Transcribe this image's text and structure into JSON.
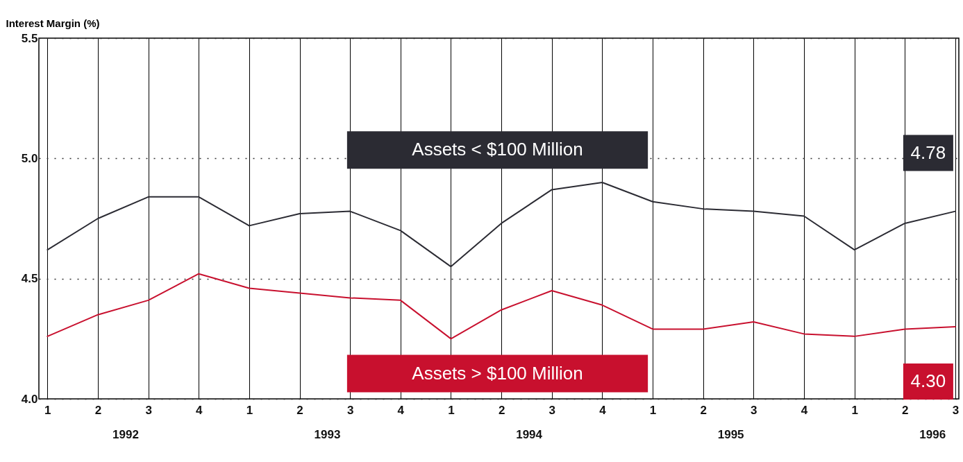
{
  "chart_data": {
    "type": "line",
    "ylabel": "Interest Margin (%)",
    "categories": [
      "1",
      "2",
      "3",
      "4",
      "1",
      "2",
      "3",
      "4",
      "1",
      "2",
      "3",
      "4",
      "1",
      "2",
      "3",
      "4",
      "1",
      "2",
      "3"
    ],
    "series": [
      {
        "name": "Assets  <  $100  Million",
        "color": "#2b2b33",
        "values": [
          4.62,
          4.75,
          4.84,
          4.84,
          4.72,
          4.77,
          4.78,
          4.7,
          4.55,
          4.73,
          4.87,
          4.9,
          4.82,
          4.79,
          4.78,
          4.76,
          4.62,
          4.73,
          4.78
        ],
        "value_labels": [
          null,
          null,
          null,
          null,
          null,
          null,
          null,
          null,
          null,
          null,
          null,
          null,
          null,
          null,
          null,
          null,
          null,
          null,
          "4.78"
        ]
      },
      {
        "name": "Assets  >  $100  Million",
        "color": "#c8102e",
        "values": [
          4.26,
          4.35,
          4.41,
          4.52,
          4.46,
          4.44,
          4.42,
          4.41,
          4.25,
          4.37,
          4.45,
          4.39,
          4.29,
          4.29,
          4.32,
          4.27,
          4.26,
          4.29,
          4.3
        ],
        "value_labels": [
          null,
          null,
          null,
          null,
          null,
          null,
          null,
          null,
          null,
          null,
          null,
          null,
          null,
          null,
          null,
          null,
          null,
          null,
          "4.30"
        ]
      }
    ],
    "annotations": [
      "1992",
      "1993",
      "1994",
      "1995",
      "1996"
    ],
    "ylim": [
      4.0,
      5.5
    ],
    "yticks": [
      {
        "value": 4,
        "label": "4.0"
      },
      4.5,
      {
        "value": 5,
        "label": "5.0"
      },
      5.5
    ],
    "grid": true,
    "line_style": "solid",
    "marker": "none",
    "legend": false
  }
}
